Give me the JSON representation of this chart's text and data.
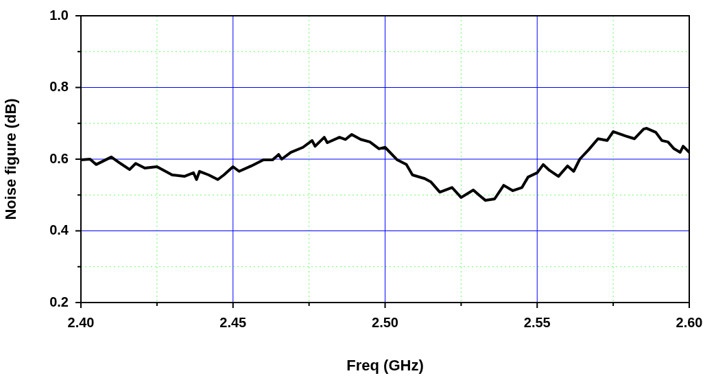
{
  "chart_data": {
    "type": "line",
    "xlabel": "Freq (GHz)",
    "ylabel": "Noise figure (dB)",
    "xlim": [
      2.4,
      2.6
    ],
    "ylim": [
      0.2,
      1.0
    ],
    "xticks": [
      {
        "value": 2.4,
        "label": "2.40"
      },
      {
        "value": 2.425,
        "label": null
      },
      {
        "value": 2.45,
        "label": "2.45"
      },
      {
        "value": 2.475,
        "label": null
      },
      {
        "value": 2.5,
        "label": "2.50"
      },
      {
        "value": 2.525,
        "label": null
      },
      {
        "value": 2.55,
        "label": "2.55"
      },
      {
        "value": 2.575,
        "label": null
      },
      {
        "value": 2.6,
        "label": "2.60"
      }
    ],
    "yticks": [
      0.2,
      {
        "value": 0.3,
        "label": null
      },
      0.4,
      {
        "value": 0.5,
        "label": null
      },
      0.6,
      {
        "value": 0.7,
        "label": null
      },
      0.8,
      {
        "value": 0.9,
        "label": null
      },
      {
        "value": 1.0,
        "label": "1.0"
      }
    ],
    "grid": true,
    "legend": false,
    "marker": "none",
    "line_style": "solid",
    "x": [
      2.4,
      2.403,
      2.405,
      2.41,
      2.413,
      2.416,
      2.418,
      2.421,
      2.425,
      2.43,
      2.434,
      2.437,
      2.438,
      2.439,
      2.442,
      2.445,
      2.447,
      2.45,
      2.452,
      2.456,
      2.46,
      2.463,
      2.465,
      2.466,
      2.469,
      2.473,
      2.476,
      2.477,
      2.48,
      2.481,
      2.485,
      2.487,
      2.489,
      2.492,
      2.495,
      2.498,
      2.5,
      2.504,
      2.507,
      2.509,
      2.513,
      2.515,
      2.518,
      2.522,
      2.525,
      2.529,
      2.531,
      2.533,
      2.536,
      2.539,
      2.542,
      2.545,
      2.547,
      2.55,
      2.552,
      2.554,
      2.557,
      2.56,
      2.562,
      2.564,
      2.567,
      2.57,
      2.573,
      2.575,
      2.579,
      2.582,
      2.585,
      2.586,
      2.589,
      2.591,
      2.593,
      2.595,
      2.597,
      2.598,
      2.6
    ],
    "series": [
      {
        "color": "#000000",
        "values": [
          0.598,
          0.6,
          0.585,
          0.606,
          0.588,
          0.571,
          0.588,
          0.575,
          0.579,
          0.556,
          0.552,
          0.562,
          0.543,
          0.566,
          0.556,
          0.543,
          0.556,
          0.579,
          0.566,
          0.581,
          0.598,
          0.598,
          0.613,
          0.6,
          0.619,
          0.633,
          0.652,
          0.636,
          0.661,
          0.646,
          0.661,
          0.655,
          0.669,
          0.655,
          0.648,
          0.629,
          0.633,
          0.598,
          0.585,
          0.556,
          0.546,
          0.537,
          0.508,
          0.521,
          0.493,
          0.514,
          0.499,
          0.485,
          0.489,
          0.527,
          0.512,
          0.521,
          0.55,
          0.562,
          0.585,
          0.569,
          0.552,
          0.581,
          0.566,
          0.6,
          0.627,
          0.657,
          0.652,
          0.677,
          0.665,
          0.657,
          0.684,
          0.686,
          0.675,
          0.652,
          0.648,
          0.629,
          0.619,
          0.636,
          0.619
        ]
      }
    ]
  }
}
